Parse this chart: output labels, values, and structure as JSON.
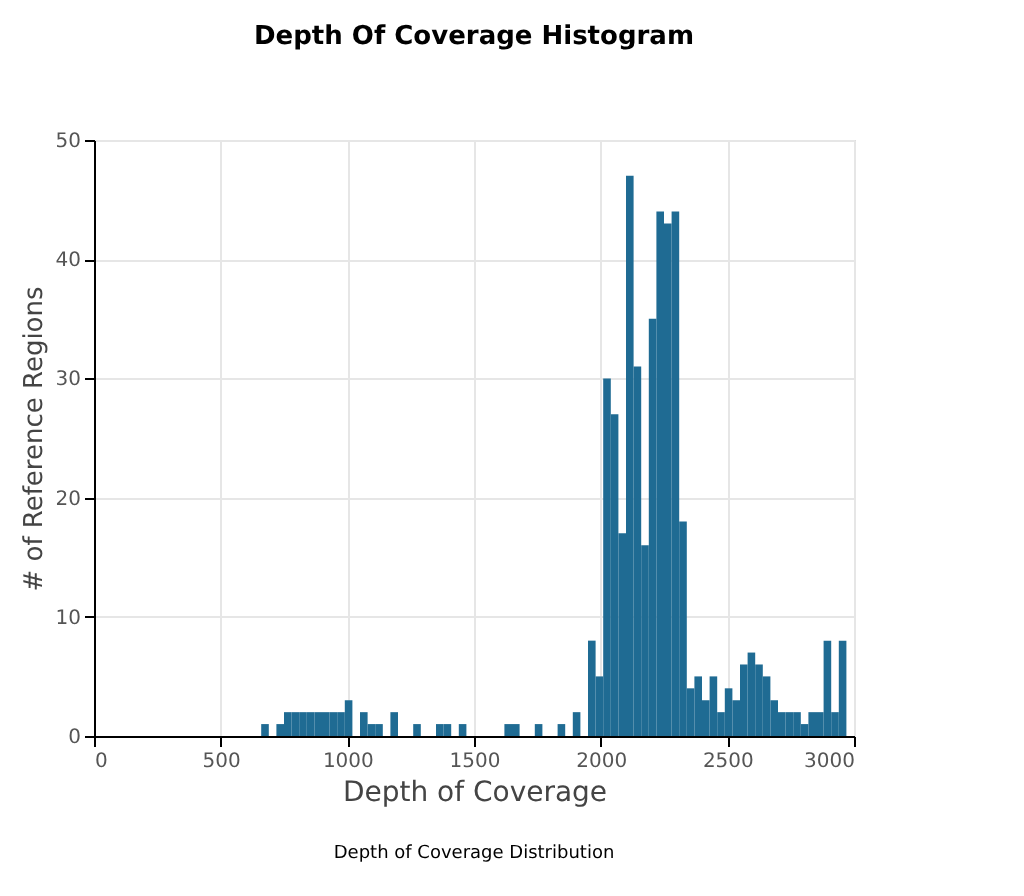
{
  "chart_data": {
    "type": "histogram",
    "title": "Depth Of Coverage Histogram",
    "xlabel": "Depth of Coverage",
    "ylabel": "# of Reference Regions",
    "annotations": [
      "Depth of Coverage Distribution"
    ],
    "bins": [
      660,
      690,
      720,
      750,
      780,
      810,
      840,
      870,
      900,
      930,
      960,
      990,
      1020,
      1050,
      1080,
      1110,
      1140,
      1170,
      1200,
      1230,
      1260,
      1290,
      1320,
      1350,
      1380,
      1410,
      1440,
      1470,
      1500,
      1530,
      1560,
      1590,
      1620,
      1650,
      1680,
      1710,
      1740,
      1770,
      1800,
      1830,
      1860,
      1890,
      1920,
      1950,
      1980,
      2010,
      2040,
      2070,
      2100,
      2130,
      2160,
      2190,
      2220,
      2250,
      2280,
      2310,
      2340,
      2370,
      2400,
      2430,
      2460,
      2490,
      2520,
      2550,
      2580,
      2610,
      2640,
      2670,
      2700,
      2730,
      2760,
      2790,
      2820,
      2850,
      2880,
      2910,
      2940,
      2970
    ],
    "values": [
      1,
      0,
      1,
      2,
      2,
      2,
      2,
      2,
      2,
      2,
      2,
      3,
      0,
      2,
      1,
      1,
      0,
      2,
      0,
      0,
      1,
      0,
      0,
      1,
      1,
      0,
      1,
      0,
      0,
      0,
      0,
      0,
      1,
      1,
      0,
      0,
      1,
      0,
      0,
      1,
      0,
      2,
      0,
      8,
      5,
      30,
      27,
      17,
      47,
      31,
      16,
      35,
      44,
      43,
      44,
      18,
      4,
      5,
      3,
      5,
      2,
      4,
      3,
      6,
      7,
      6,
      5,
      3,
      2,
      2,
      2,
      1,
      2,
      2,
      8,
      2,
      8
    ],
    "color": "#1f6b93",
    "xlim": [
      0,
      3000
    ],
    "xticks": [
      0,
      500,
      1000,
      1500,
      2000,
      2500,
      3000
    ],
    "ylim": [
      0,
      50
    ],
    "yticks": [
      0,
      10,
      20,
      30,
      40,
      50
    ],
    "grid": true,
    "legend": false
  }
}
